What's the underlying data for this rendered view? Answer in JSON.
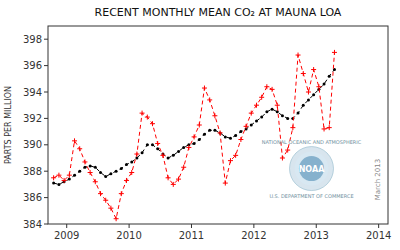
{
  "chart_data": {
    "type": "line",
    "title": "RECENT MONTHLY MEAN CO₂ AT MAUNA LOA",
    "y_label": "PARTS PER MILLION",
    "xlim": [
      2008.7,
      2014.15
    ],
    "ylim": [
      384,
      399
    ],
    "xticks": [
      2009,
      2010,
      2011,
      2012,
      2013,
      2014
    ],
    "yticks": [
      384,
      386,
      388,
      390,
      392,
      394,
      396,
      398
    ],
    "grid": false,
    "annotations": [
      "March 2013",
      "NOAA",
      "NATIONAL OCEANIC AND ATMOSPHERIC",
      "U.S. DEPARTMENT OF COMMERCE"
    ],
    "x": [
      2008.79,
      2008.875,
      2008.958,
      2009.042,
      2009.125,
      2009.208,
      2009.292,
      2009.375,
      2009.458,
      2009.542,
      2009.625,
      2009.708,
      2009.792,
      2009.875,
      2009.958,
      2010.042,
      2010.125,
      2010.208,
      2010.292,
      2010.375,
      2010.458,
      2010.542,
      2010.625,
      2010.708,
      2010.792,
      2010.875,
      2010.958,
      2011.042,
      2011.125,
      2011.208,
      2011.292,
      2011.375,
      2011.458,
      2011.542,
      2011.625,
      2011.708,
      2011.792,
      2011.875,
      2011.958,
      2012.042,
      2012.125,
      2012.208,
      2012.292,
      2012.375,
      2012.458,
      2012.542,
      2012.625,
      2012.708,
      2012.792,
      2012.875,
      2012.958,
      2013.042,
      2013.125,
      2013.208,
      2013.292
    ],
    "series": [
      {
        "color": "black",
        "marker": "circle",
        "line_style": "dashed",
        "values": [
          387.1,
          387.0,
          387.2,
          387.4,
          387.7,
          388.0,
          388.3,
          388.4,
          388.3,
          387.9,
          387.6,
          387.8,
          388.0,
          388.2,
          388.5,
          388.7,
          389.0,
          389.4,
          390.0,
          390.0,
          389.7,
          389.3,
          389.0,
          389.2,
          389.5,
          389.8,
          390.0,
          390.1,
          390.4,
          390.8,
          391.1,
          391.1,
          390.9,
          390.6,
          390.5,
          390.7,
          391.0,
          391.2,
          391.5,
          391.8,
          392.1,
          392.5,
          392.7,
          392.5,
          392.2,
          392.0,
          392.0,
          392.4,
          393.0,
          393.4,
          393.8,
          394.2,
          394.6,
          395.2,
          395.7
        ]
      },
      {
        "color": "red",
        "marker": "plus",
        "line_style": "dashed",
        "values": [
          387.5,
          387.7,
          387.3,
          387.7,
          390.3,
          389.7,
          388.7,
          387.9,
          387.2,
          386.3,
          385.8,
          385.2,
          384.4,
          386.3,
          387.3,
          387.9,
          389.3,
          392.4,
          392.1,
          391.6,
          390.1,
          389.2,
          387.5,
          387.0,
          387.4,
          388.3,
          389.8,
          390.6,
          391.5,
          394.3,
          393.4,
          392.2,
          390.9,
          387.1,
          388.8,
          389.2,
          390.4,
          391.4,
          392.4,
          393.0,
          393.6,
          394.4,
          394.2,
          393.0,
          389.0,
          389.6,
          391.3,
          396.8,
          395.4,
          394.0,
          395.7,
          394.4,
          391.2,
          391.3,
          397.0
        ]
      }
    ]
  }
}
